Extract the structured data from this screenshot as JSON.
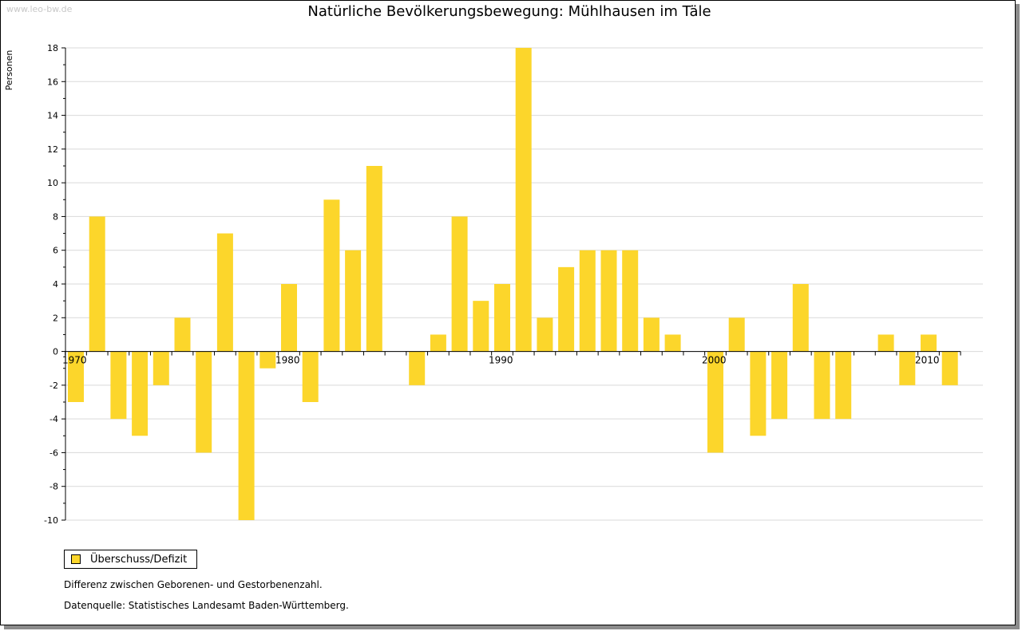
{
  "watermark": "www.leo-bw.de",
  "chart_data": {
    "type": "bar",
    "title": "Natürliche Bevölkerungsbewegung: Mühlhausen im Täle",
    "ylabel": "Personen",
    "xlabel": "",
    "ylim": [
      -10,
      18
    ],
    "yticks": [
      -10,
      -8,
      -6,
      -4,
      -2,
      0,
      2,
      4,
      6,
      8,
      10,
      12,
      14,
      16,
      18
    ],
    "xtick_labels": [
      "1970",
      "1980",
      "1990",
      "2000",
      "2010"
    ],
    "grid": true,
    "legend_position": "bottom-left",
    "bar_color": "#FCD62B",
    "categories": [
      1970,
      1971,
      1972,
      1973,
      1974,
      1975,
      1976,
      1977,
      1978,
      1979,
      1980,
      1981,
      1982,
      1983,
      1984,
      1985,
      1986,
      1987,
      1988,
      1989,
      1990,
      1991,
      1992,
      1993,
      1994,
      1995,
      1996,
      1997,
      1998,
      1999,
      2000,
      2001,
      2002,
      2003,
      2004,
      2005,
      2006,
      2007,
      2008,
      2009,
      2010,
      2011
    ],
    "series": [
      {
        "name": "Überschuss/Defizit",
        "values": [
          -3,
          8,
          -4,
          -5,
          -2,
          2,
          -6,
          7,
          -10,
          -1,
          4,
          -3,
          9,
          6,
          11,
          0,
          -2,
          1,
          8,
          3,
          4,
          18,
          2,
          5,
          6,
          6,
          6,
          2,
          1,
          0,
          -6,
          2,
          -5,
          -4,
          4,
          -4,
          -4,
          0,
          1,
          -2,
          1,
          -2
        ]
      }
    ]
  },
  "legend": {
    "label": "Überschuss/Defizit"
  },
  "notes": {
    "description": "Differenz zwischen Geborenen- und Gestorbenenzahl.",
    "source": "Datenquelle: Statistisches Landesamt Baden-Württemberg."
  }
}
